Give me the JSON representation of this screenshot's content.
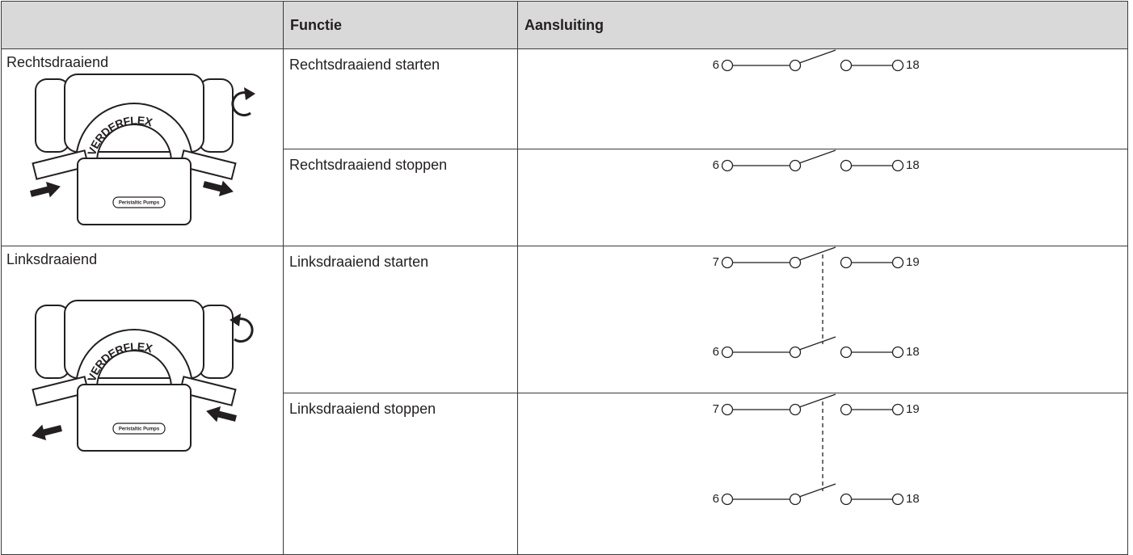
{
  "header": {
    "columns": [
      "Functie",
      "Aansluiting"
    ]
  },
  "rows": [
    {
      "label": "Rechtsdraaiend",
      "figure": {
        "brand": "VERDERFLEX",
        "caption": "Peristaltic Pumps"
      },
      "functions": [
        {
          "name": "Rechtsdraaiend starten",
          "circuits": [
            {
              "left": "6",
              "right": "18"
            }
          ]
        },
        {
          "name": "Rechtsdraaiend stoppen",
          "circuits": [
            {
              "left": "6",
              "right": "18"
            }
          ]
        }
      ]
    },
    {
      "label": "Linksdraaiend",
      "figure": {
        "brand": "VERDERFLEX",
        "caption": "Peristaltic Pumps"
      },
      "functions": [
        {
          "name": "Linksdraaiend starten",
          "circuits": [
            {
              "left": "7",
              "right": "19"
            },
            {
              "left": "6",
              "right": "18"
            }
          ]
        },
        {
          "name": "Linksdraaiend stoppen",
          "circuits": [
            {
              "left": "7",
              "right": "19"
            },
            {
              "left": "6",
              "right": "18"
            }
          ]
        }
      ]
    }
  ]
}
